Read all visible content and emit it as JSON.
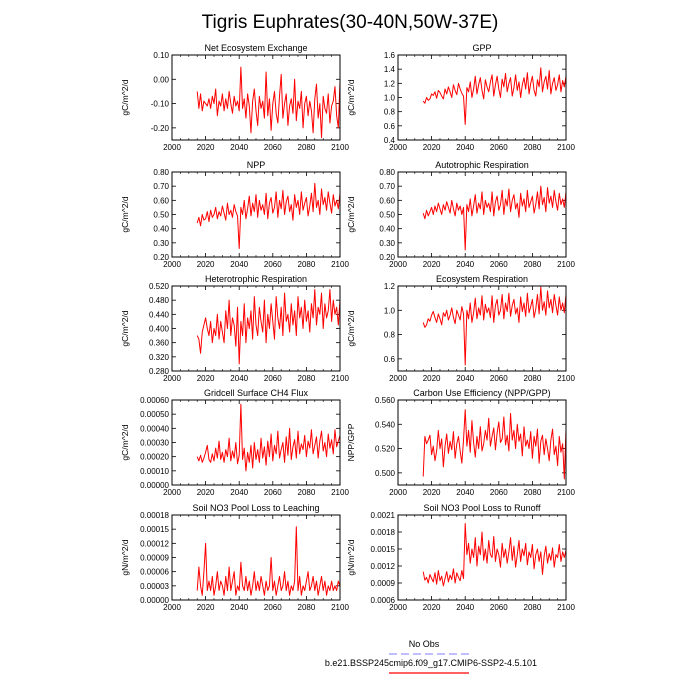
{
  "suptitle": "Tigris Euphrates(30-40N,50W-37E)",
  "legend": {
    "obs_label": "No Obs",
    "model_label": "b.e21.BSSP245cmip6.f09_g17.CMIP6-SSP2-4.5.101",
    "obs_color": "#9999ff",
    "model_color": "#ff0000"
  },
  "line_color": "#ff0000",
  "chart_data": [
    {
      "type": "line",
      "title": "Net Ecosystem Exchange",
      "ylabel": "gC/m^2/d",
      "xlim": [
        2000,
        2100
      ],
      "ylim": [
        -0.25,
        0.1
      ],
      "xticks": [
        2000,
        2020,
        2040,
        2060,
        2080,
        2100
      ],
      "yticks": [
        "-0.20",
        "-0.10",
        "0.00",
        "0.10"
      ],
      "x_start": 2015,
      "values": [
        -0.05,
        -0.12,
        -0.06,
        -0.13,
        -0.09,
        -0.1,
        -0.11,
        -0.08,
        -0.12,
        -0.07,
        -0.1,
        -0.04,
        -0.15,
        -0.09,
        -0.11,
        -0.06,
        -0.13,
        -0.08,
        -0.12,
        -0.05,
        -0.1,
        -0.14,
        -0.07,
        -0.11,
        -0.09,
        -0.13,
        0.05,
        -0.12,
        -0.08,
        -0.16,
        -0.06,
        -0.11,
        -0.22,
        -0.09,
        -0.04,
        -0.13,
        -0.19,
        -0.07,
        -0.12,
        -0.09,
        -0.16,
        0.03,
        -0.15,
        -0.08,
        -0.21,
        -0.1,
        -0.05,
        -0.14,
        -0.18,
        -0.07,
        0.02,
        -0.16,
        -0.1,
        -0.06,
        -0.19,
        -0.11,
        -0.08,
        -0.14,
        0.0,
        -0.17,
        -0.09,
        -0.12,
        -0.05,
        -0.2,
        -0.1,
        -0.07,
        -0.15,
        -0.09,
        -0.13,
        -0.22,
        -0.08,
        -0.02,
        -0.16,
        -0.1,
        -0.24,
        -0.07,
        -0.12,
        -0.14,
        -0.06,
        -0.18,
        -0.11,
        -0.09,
        -0.03,
        -0.15,
        -0.2,
        -0.01
      ]
    },
    {
      "type": "line",
      "title": "GPP",
      "ylabel": "gC/m^2/d",
      "xlim": [
        2000,
        2100
      ],
      "ylim": [
        0.4,
        1.6
      ],
      "xticks": [
        2000,
        2020,
        2040,
        2060,
        2080,
        2100
      ],
      "yticks": [
        "0.4",
        "0.6",
        "0.8",
        "1.0",
        "1.2",
        "1.4",
        "1.6"
      ],
      "x_start": 2015,
      "values": [
        0.95,
        0.92,
        1.0,
        0.96,
        0.98,
        1.05,
        1.03,
        1.08,
        0.99,
        1.1,
        1.07,
        1.02,
        0.98,
        1.12,
        1.05,
        1.15,
        1.08,
        1.0,
        1.18,
        1.1,
        1.04,
        1.2,
        1.12,
        1.06,
        1.02,
        0.62,
        1.14,
        1.08,
        1.22,
        1.0,
        1.12,
        1.3,
        1.05,
        1.18,
        1.28,
        1.1,
        0.98,
        1.25,
        1.15,
        1.08,
        1.22,
        1.32,
        1.02,
        1.18,
        1.3,
        1.12,
        1.0,
        1.26,
        1.15,
        1.34,
        1.08,
        1.2,
        1.28,
        1.02,
        1.14,
        1.32,
        1.1,
        1.22,
        1.0,
        1.18,
        1.28,
        1.12,
        1.35,
        1.05,
        1.2,
        1.3,
        1.1,
        1.02,
        1.25,
        1.15,
        1.42,
        1.08,
        1.22,
        1.3,
        1.12,
        1.38,
        1.05,
        1.2,
        1.28,
        1.1,
        1.18,
        1.32,
        1.08,
        1.24,
        1.15,
        1.3
      ]
    },
    {
      "type": "line",
      "title": "NPP",
      "ylabel": "gC/m^2/d",
      "xlim": [
        2000,
        2100
      ],
      "ylim": [
        0.2,
        0.8
      ],
      "xticks": [
        2000,
        2020,
        2040,
        2060,
        2080,
        2100
      ],
      "yticks": [
        "0.20",
        "0.30",
        "0.40",
        "0.50",
        "0.60",
        "0.70",
        "0.80"
      ],
      "x_start": 2015,
      "values": [
        0.44,
        0.48,
        0.42,
        0.5,
        0.46,
        0.47,
        0.52,
        0.45,
        0.53,
        0.48,
        0.5,
        0.55,
        0.47,
        0.52,
        0.49,
        0.56,
        0.51,
        0.46,
        0.58,
        0.5,
        0.53,
        0.48,
        0.57,
        0.52,
        0.49,
        0.26,
        0.55,
        0.5,
        0.6,
        0.47,
        0.54,
        0.63,
        0.49,
        0.58,
        0.52,
        0.64,
        0.48,
        0.6,
        0.53,
        0.57,
        0.5,
        0.65,
        0.47,
        0.58,
        0.62,
        0.51,
        0.55,
        0.66,
        0.48,
        0.6,
        0.54,
        0.67,
        0.5,
        0.59,
        0.63,
        0.52,
        0.57,
        0.46,
        0.64,
        0.55,
        0.6,
        0.5,
        0.66,
        0.53,
        0.58,
        0.62,
        0.49,
        0.56,
        0.65,
        0.52,
        0.72,
        0.55,
        0.6,
        0.5,
        0.68,
        0.57,
        0.62,
        0.53,
        0.66,
        0.58,
        0.51,
        0.64,
        0.56,
        0.6,
        0.54,
        0.65
      ]
    },
    {
      "type": "line",
      "title": "Autotrophic Respiration",
      "ylabel": "gC/m^2/d",
      "xlim": [
        2000,
        2100
      ],
      "ylim": [
        0.2,
        0.8
      ],
      "xticks": [
        2000,
        2020,
        2040,
        2060,
        2080,
        2100
      ],
      "yticks": [
        "0.20",
        "0.30",
        "0.40",
        "0.50",
        "0.60",
        "0.70",
        "0.80"
      ],
      "x_start": 2015,
      "values": [
        0.51,
        0.47,
        0.53,
        0.49,
        0.52,
        0.55,
        0.5,
        0.56,
        0.52,
        0.58,
        0.54,
        0.5,
        0.57,
        0.53,
        0.59,
        0.55,
        0.51,
        0.6,
        0.54,
        0.49,
        0.58,
        0.53,
        0.56,
        0.5,
        0.55,
        0.25,
        0.57,
        0.52,
        0.61,
        0.49,
        0.56,
        0.64,
        0.51,
        0.58,
        0.54,
        0.66,
        0.5,
        0.6,
        0.55,
        0.58,
        0.52,
        0.66,
        0.49,
        0.59,
        0.63,
        0.53,
        0.57,
        0.67,
        0.5,
        0.61,
        0.56,
        0.68,
        0.52,
        0.6,
        0.64,
        0.54,
        0.58,
        0.48,
        0.65,
        0.56,
        0.61,
        0.52,
        0.67,
        0.55,
        0.59,
        0.63,
        0.51,
        0.57,
        0.66,
        0.54,
        0.7,
        0.57,
        0.62,
        0.52,
        0.69,
        0.58,
        0.63,
        0.55,
        0.67,
        0.59,
        0.53,
        0.65,
        0.57,
        0.61,
        0.55,
        0.66
      ]
    },
    {
      "type": "line",
      "title": "Heterotrophic Respiration",
      "ylabel": "gC/m^2/d",
      "xlim": [
        2000,
        2100
      ],
      "ylim": [
        0.28,
        0.52
      ],
      "xticks": [
        2000,
        2020,
        2040,
        2060,
        2080,
        2100
      ],
      "yticks": [
        "0.280",
        "0.320",
        "0.360",
        "0.400",
        "0.440",
        "0.480",
        "0.520"
      ],
      "x_start": 2015,
      "values": [
        0.38,
        0.37,
        0.33,
        0.39,
        0.41,
        0.43,
        0.4,
        0.38,
        0.42,
        0.36,
        0.4,
        0.38,
        0.44,
        0.37,
        0.42,
        0.39,
        0.36,
        0.45,
        0.4,
        0.48,
        0.38,
        0.43,
        0.41,
        0.35,
        0.46,
        0.3,
        0.42,
        0.38,
        0.47,
        0.36,
        0.43,
        0.4,
        0.45,
        0.37,
        0.49,
        0.41,
        0.38,
        0.46,
        0.42,
        0.39,
        0.48,
        0.36,
        0.44,
        0.4,
        0.47,
        0.42,
        0.37,
        0.49,
        0.43,
        0.4,
        0.46,
        0.38,
        0.5,
        0.42,
        0.44,
        0.39,
        0.47,
        0.41,
        0.45,
        0.38,
        0.49,
        0.43,
        0.46,
        0.4,
        0.48,
        0.42,
        0.45,
        0.39,
        0.47,
        0.43,
        0.51,
        0.41,
        0.46,
        0.44,
        0.5,
        0.4,
        0.47,
        0.43,
        0.45,
        0.51,
        0.42,
        0.48,
        0.44,
        0.46,
        0.41,
        0.48
      ]
    },
    {
      "type": "line",
      "title": "Ecosystem Respiration",
      "ylabel": "gC/m^2/d",
      "xlim": [
        2000,
        2100
      ],
      "ylim": [
        0.5,
        1.2
      ],
      "xticks": [
        2000,
        2020,
        2040,
        2060,
        2080,
        2100
      ],
      "yticks": [
        "0.6",
        "0.8",
        "1.0",
        "1.2"
      ],
      "x_start": 2015,
      "values": [
        0.9,
        0.86,
        0.88,
        0.93,
        0.91,
        0.96,
        0.99,
        0.94,
        0.9,
        0.97,
        0.93,
        0.88,
        0.98,
        0.95,
        1.0,
        0.92,
        0.96,
        1.02,
        0.94,
        0.89,
        1.0,
        0.96,
        0.92,
        1.03,
        0.97,
        0.55,
        1.0,
        0.93,
        1.06,
        0.9,
        0.98,
        1.1,
        0.93,
        1.02,
        0.96,
        1.12,
        0.92,
        1.05,
        0.98,
        1.02,
        0.94,
        1.12,
        0.9,
        1.04,
        1.09,
        0.96,
        1.0,
        1.13,
        0.93,
        1.06,
        0.99,
        1.14,
        0.95,
        1.04,
        1.09,
        0.97,
        1.02,
        0.9,
        1.11,
        0.99,
        1.06,
        0.95,
        1.14,
        0.98,
        1.03,
        1.09,
        0.94,
        1.01,
        1.13,
        0.97,
        1.19,
        1.0,
        1.07,
        0.96,
        1.16,
        1.02,
        1.09,
        0.98,
        1.13,
        1.04,
        0.96,
        1.11,
        1.0,
        1.06,
        0.98,
        1.13
      ]
    },
    {
      "type": "line",
      "title": "Gridcell Surface CH4 Flux",
      "ylabel": "gC/m^2/d",
      "xlim": [
        2000,
        2100
      ],
      "ylim": [
        0.0,
        0.0006
      ],
      "xticks": [
        2000,
        2020,
        2040,
        2060,
        2080,
        2100
      ],
      "yticks": [
        "0.00000",
        "0.00010",
        "0.00020",
        "0.00030",
        "0.00040",
        "0.00050",
        "0.00060"
      ],
      "x_start": 2015,
      "values": [
        0.0002,
        0.00017,
        0.00021,
        0.00016,
        0.00019,
        0.00023,
        0.00028,
        0.00018,
        0.00016,
        0.00022,
        0.00017,
        0.00026,
        0.00019,
        0.00031,
        0.00018,
        0.00023,
        0.00016,
        0.00025,
        0.0002,
        0.00033,
        0.00017,
        0.00024,
        0.00019,
        0.0003,
        0.00015,
        0.00021,
        0.00057,
        0.00018,
        0.00026,
        0.0001,
        0.00023,
        0.00016,
        0.00028,
        0.00012,
        0.0003,
        0.00018,
        0.00025,
        0.00016,
        0.00033,
        0.00019,
        0.00027,
        0.00014,
        0.00031,
        0.0002,
        0.00036,
        0.00017,
        0.00028,
        0.00022,
        0.00038,
        0.00019,
        0.00025,
        0.0003,
        0.00016,
        0.00034,
        0.00021,
        0.0004,
        0.00018,
        0.00027,
        0.00032,
        0.00019,
        0.00038,
        0.00022,
        0.00029,
        0.00025,
        0.00035,
        0.0002,
        0.00031,
        0.00026,
        0.00039,
        0.00022,
        0.00028,
        0.00034,
        0.00019,
        0.00031,
        0.00038,
        0.00024,
        0.0003,
        0.0002,
        0.00036,
        0.00026,
        0.00032,
        0.00022,
        0.00039,
        0.00027,
        0.00031,
        0.00035
      ]
    },
    {
      "type": "line",
      "title": "Carbon Use Efficiency (NPP/GPP)",
      "ylabel": "NPP/GPP",
      "xlim": [
        2000,
        2100
      ],
      "ylim": [
        0.49,
        0.56
      ],
      "xticks": [
        2000,
        2020,
        2040,
        2060,
        2080,
        2100
      ],
      "yticks": [
        "0.500",
        "0.520",
        "0.540",
        "0.560"
      ],
      "x_start": 2015,
      "values": [
        0.497,
        0.53,
        0.524,
        0.527,
        0.531,
        0.515,
        0.522,
        0.51,
        0.518,
        0.535,
        0.52,
        0.528,
        0.505,
        0.522,
        0.532,
        0.516,
        0.526,
        0.519,
        0.534,
        0.512,
        0.524,
        0.53,
        0.518,
        0.508,
        0.527,
        0.552,
        0.522,
        0.535,
        0.517,
        0.543,
        0.525,
        0.513,
        0.53,
        0.52,
        0.538,
        0.518,
        0.524,
        0.535,
        0.527,
        0.545,
        0.522,
        0.53,
        0.537,
        0.519,
        0.533,
        0.542,
        0.525,
        0.528,
        0.546,
        0.523,
        0.531,
        0.518,
        0.549,
        0.527,
        0.535,
        0.52,
        0.54,
        0.526,
        0.532,
        0.514,
        0.538,
        0.522,
        0.527,
        0.52,
        0.534,
        0.512,
        0.53,
        0.522,
        0.536,
        0.508,
        0.526,
        0.531,
        0.515,
        0.528,
        0.52,
        0.51,
        0.527,
        0.536,
        0.515,
        0.522,
        0.506,
        0.53,
        0.517,
        0.524,
        0.495,
        0.536
      ]
    },
    {
      "type": "line",
      "title": "Soil NO3 Pool Loss to Leaching",
      "ylabel": "gN/m^2/d",
      "xlim": [
        2000,
        2100
      ],
      "ylim": [
        0.0,
        0.00018
      ],
      "xticks": [
        2000,
        2020,
        2040,
        2060,
        2080,
        2100
      ],
      "yticks": [
        "0.00000",
        "0.00003",
        "0.00006",
        "0.00009",
        "0.00012",
        "0.00015",
        "0.00018"
      ],
      "x_start": 2015,
      "values": [
        2e-05,
        7e-05,
        3e-05,
        1e-05,
        6e-05,
        0.00012,
        2e-05,
        4e-05,
        2e-05,
        5e-05,
        1e-05,
        3e-05,
        6e-05,
        2e-05,
        4e-05,
        3e-05,
        1e-05,
        5e-05,
        2e-05,
        7e-05,
        2e-05,
        4e-05,
        6e-05,
        1e-05,
        3e-05,
        2e-05,
        8e-05,
        3e-05,
        2e-05,
        5e-05,
        2e-05,
        4e-05,
        1e-05,
        3e-05,
        6e-05,
        2e-05,
        4e-05,
        2e-05,
        5e-05,
        3e-05,
        1e-05,
        4e-05,
        2e-05,
        3e-05,
        9e-05,
        2e-05,
        4e-05,
        1e-05,
        3e-05,
        5e-05,
        2e-05,
        3e-05,
        6e-05,
        2e-05,
        4e-05,
        1e-05,
        3e-05,
        2e-05,
        4e-05,
        0.000155,
        2e-05,
        5e-05,
        1e-05,
        3e-05,
        2e-05,
        4e-05,
        6e-05,
        2e-05,
        3e-05,
        5e-05,
        2e-05,
        4e-05,
        1e-05,
        3e-05,
        5e-05,
        2e-05,
        4e-05,
        1e-05,
        3e-05,
        2e-05,
        4e-05,
        2e-05,
        3e-05,
        2e-05,
        4e-05,
        3e-05
      ]
    },
    {
      "type": "line",
      "title": "Soil NO3 Pool Loss to Runoff",
      "ylabel": "gN/m^2/d",
      "xlim": [
        2000,
        2100
      ],
      "ylim": [
        0.0006,
        0.0021
      ],
      "xticks": [
        2000,
        2020,
        2040,
        2060,
        2080,
        2100
      ],
      "yticks": [
        "0.0006",
        "0.0009",
        "0.0012",
        "0.0015",
        "0.0018",
        "0.0021"
      ],
      "x_start": 2015,
      "values": [
        0.0011,
        0.00095,
        0.001,
        0.0009,
        0.00105,
        0.00098,
        0.00092,
        0.00108,
        0.00088,
        0.00112,
        0.00094,
        0.00102,
        0.00085,
        0.00098,
        0.0011,
        0.00092,
        0.00104,
        0.00096,
        0.00115,
        0.0009,
        0.00108,
        0.001,
        0.00094,
        0.00112,
        0.00098,
        0.00195,
        0.0014,
        0.0016,
        0.00125,
        0.0015,
        0.00135,
        0.0017,
        0.0012,
        0.00155,
        0.0014,
        0.0018,
        0.0013,
        0.0015,
        0.00125,
        0.00165,
        0.0014,
        0.00135,
        0.00172,
        0.00128,
        0.0015,
        0.0014,
        0.00118,
        0.0016,
        0.00135,
        0.0015,
        0.00125,
        0.00145,
        0.0017,
        0.0013,
        0.00155,
        0.00118,
        0.0014,
        0.00165,
        0.00128,
        0.0015,
        0.00138,
        0.0016,
        0.00122,
        0.00145,
        0.00135,
        0.00158,
        0.00115,
        0.0014,
        0.0015,
        0.00128,
        0.00145,
        0.00105,
        0.00138,
        0.00155,
        0.00125,
        0.00142,
        0.0013,
        0.00152,
        0.00118,
        0.0014,
        0.00135,
        0.00158,
        0.00128,
        0.00145,
        0.00135,
        0.00148
      ]
    }
  ]
}
